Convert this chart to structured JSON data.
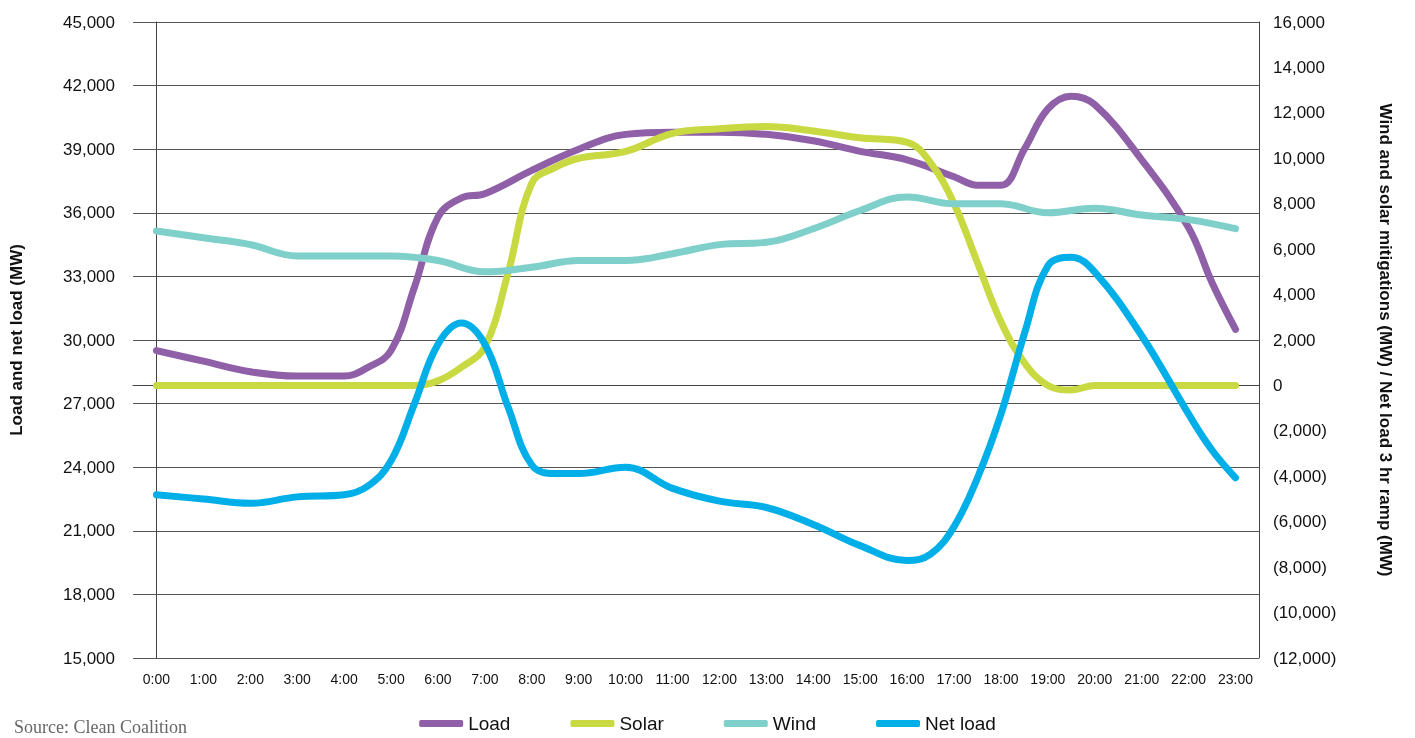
{
  "chart_data": {
    "type": "line",
    "ylabel": "Load and net load (MW)",
    "y2label": "Wind and solar mitigations (MW) / Net load 3 hr ramp (MW)",
    "annotations": [
      "Source: Clean Coalition"
    ],
    "xlim": [
      -0.5,
      23.5
    ],
    "xticks": [
      {
        "value": 0,
        "label": "0:00"
      },
      {
        "value": 1,
        "label": "1:00"
      },
      {
        "value": 2,
        "label": "2:00"
      },
      {
        "value": 3,
        "label": "3:00"
      },
      {
        "value": 4,
        "label": "4:00"
      },
      {
        "value": 5,
        "label": "5:00"
      },
      {
        "value": 6,
        "label": "6:00"
      },
      {
        "value": 7,
        "label": "7:00"
      },
      {
        "value": 8,
        "label": "8:00"
      },
      {
        "value": 9,
        "label": "9:00"
      },
      {
        "value": 10,
        "label": "10:00"
      },
      {
        "value": 11,
        "label": "11:00"
      },
      {
        "value": 12,
        "label": "12:00"
      },
      {
        "value": 13,
        "label": "13:00"
      },
      {
        "value": 14,
        "label": "14:00"
      },
      {
        "value": 15,
        "label": "15:00"
      },
      {
        "value": 16,
        "label": "16:00"
      },
      {
        "value": 17,
        "label": "17:00"
      },
      {
        "value": 18,
        "label": "18:00"
      },
      {
        "value": 19,
        "label": "19:00"
      },
      {
        "value": 20,
        "label": "20:00"
      },
      {
        "value": 21,
        "label": "21:00"
      },
      {
        "value": 22,
        "label": "22:00"
      },
      {
        "value": 23,
        "label": "23:00"
      }
    ],
    "ylim": [
      15000,
      45000
    ],
    "yticks": [
      {
        "value": 15000,
        "label": "15,000"
      },
      {
        "value": 18000,
        "label": "18,000"
      },
      {
        "value": 21000,
        "label": "21,000"
      },
      {
        "value": 24000,
        "label": "24,000"
      },
      {
        "value": 27000,
        "label": "27,000"
      },
      {
        "value": 30000,
        "label": "30,000"
      },
      {
        "value": 33000,
        "label": "33,000"
      },
      {
        "value": 36000,
        "label": "36,000"
      },
      {
        "value": 39000,
        "label": "39,000"
      },
      {
        "value": 42000,
        "label": "42,000"
      },
      {
        "value": 45000,
        "label": "45,000"
      }
    ],
    "y2lim": [
      -12000,
      16000
    ],
    "y2ticks": [
      {
        "value": -12000,
        "label": "(12,000)"
      },
      {
        "value": -10000,
        "label": "(10,000)"
      },
      {
        "value": -8000,
        "label": "(8,000)"
      },
      {
        "value": -6000,
        "label": "(6,000)"
      },
      {
        "value": -4000,
        "label": "(4,000)"
      },
      {
        "value": -2000,
        "label": "(2,000)"
      },
      {
        "value": 0,
        "label": "0"
      },
      {
        "value": 2000,
        "label": "2,000"
      },
      {
        "value": 4000,
        "label": "4,000"
      },
      {
        "value": 6000,
        "label": "6,000"
      },
      {
        "value": 8000,
        "label": "8,000"
      },
      {
        "value": 10000,
        "label": "10,000"
      },
      {
        "value": 12000,
        "label": "12,000"
      },
      {
        "value": 14000,
        "label": "14,000"
      },
      {
        "value": 16000,
        "label": "16,000"
      }
    ],
    "grid": "y",
    "legend": "bottom",
    "marker": "none",
    "line_style": "solid",
    "series": [
      {
        "name": "Load",
        "color": "#8f5fa8",
        "x": [
          0,
          1,
          2,
          3,
          4,
          4.5,
          5,
          5.5,
          6,
          6.5,
          7,
          8,
          9,
          10,
          11,
          12,
          13,
          14,
          15,
          16,
          17,
          17.5,
          18,
          18.5,
          19,
          19.5,
          20,
          21,
          22,
          22.5,
          23
        ],
        "values": [
          29500,
          29000,
          28500,
          28300,
          28300,
          28700,
          29500,
          32500,
          35800,
          36700,
          36900,
          38000,
          39000,
          39700,
          39800,
          39800,
          39700,
          39400,
          38900,
          38500,
          37700,
          37300,
          37300,
          39000,
          40900,
          41500,
          41100,
          38500,
          35300,
          32700,
          30500
        ]
      },
      {
        "name": "Solar",
        "color": "#c9d942",
        "axis": "y2",
        "x": [
          0,
          1,
          2,
          3,
          4,
          5,
          5.5,
          6,
          6.5,
          7,
          7.5,
          8,
          8.5,
          9,
          10,
          11,
          12,
          13,
          14,
          15,
          16,
          16.5,
          17,
          17.5,
          18,
          18.5,
          19,
          19.5,
          20,
          21,
          22,
          23
        ],
        "values": [
          0,
          0,
          0,
          0,
          0,
          0,
          0,
          200,
          800,
          1700,
          5000,
          8900,
          9600,
          10000,
          10300,
          11100,
          11300,
          11400,
          11200,
          10900,
          10700,
          9800,
          8000,
          5400,
          2800,
          1000,
          0,
          -200,
          0,
          0,
          0,
          0
        ]
      },
      {
        "name": "Wind",
        "color": "#7fcfca",
        "axis": "y2",
        "x": [
          0,
          1,
          2,
          3,
          4,
          5,
          6,
          7,
          8,
          9,
          10,
          11,
          12,
          13,
          14,
          15,
          16,
          17,
          18,
          19,
          20,
          21,
          22,
          23
        ],
        "values": [
          6800,
          6500,
          6200,
          5700,
          5700,
          5700,
          5500,
          5000,
          5200,
          5500,
          5500,
          5800,
          6200,
          6300,
          6900,
          7700,
          8300,
          8000,
          8000,
          7600,
          7800,
          7500,
          7300,
          6900
        ]
      },
      {
        "name": "Net load",
        "color": "#00aee8",
        "x": [
          0,
          1,
          2,
          3,
          4,
          4.5,
          5,
          5.5,
          6,
          6.5,
          7,
          7.5,
          8,
          8.5,
          9,
          10,
          11,
          12,
          13,
          14,
          15,
          16,
          16.5,
          17,
          17.5,
          18,
          18.5,
          19,
          19.5,
          20,
          21,
          22,
          22.5,
          23
        ],
        "values": [
          22700,
          22500,
          22300,
          22600,
          22700,
          23100,
          24300,
          27000,
          29800,
          30800,
          29800,
          26800,
          24100,
          23700,
          23700,
          24000,
          23000,
          22400,
          22100,
          21300,
          20300,
          19600,
          19900,
          21200,
          23500,
          26500,
          30300,
          33500,
          33900,
          33200,
          30200,
          26500,
          24800,
          23500
        ]
      }
    ]
  }
}
